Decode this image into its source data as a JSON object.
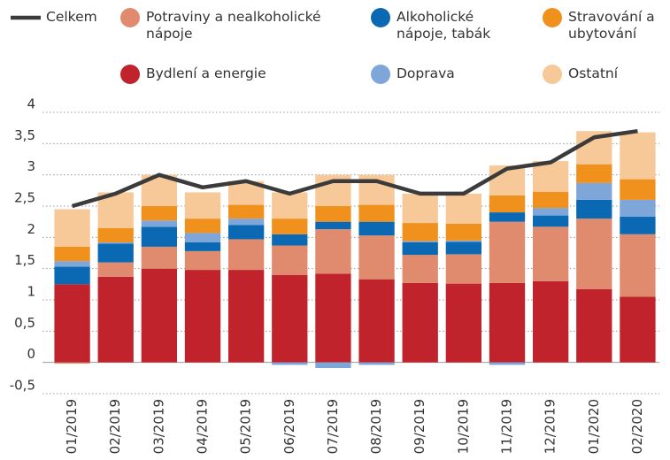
{
  "chart_data": {
    "type": "bar",
    "stacked": true,
    "categories": [
      "01/2019",
      "02/2019",
      "03/2019",
      "04/2019",
      "05/2019",
      "06/2019",
      "07/2019",
      "08/2019",
      "09/2019",
      "10/2019",
      "11/2019",
      "12/2019",
      "01/2020",
      "02/2020"
    ],
    "series": [
      {
        "name": "Celkem",
        "color": "#3b3b3b",
        "kind": "line",
        "values": [
          2.5,
          2.7,
          3.0,
          2.8,
          2.9,
          2.7,
          2.9,
          2.9,
          2.7,
          2.7,
          3.1,
          3.2,
          3.6,
          3.7
        ]
      },
      {
        "name": "Bydlení a energie",
        "color": "#c0232b",
        "values": [
          1.25,
          1.37,
          1.5,
          1.48,
          1.48,
          1.4,
          1.42,
          1.33,
          1.27,
          1.26,
          1.27,
          1.3,
          1.17,
          1.05
        ]
      },
      {
        "name": "Potraviny a nealkoholické nápoje",
        "color": "#e08a6e",
        "values": [
          -0.02,
          0.23,
          0.35,
          0.3,
          0.49,
          0.47,
          0.71,
          0.7,
          0.45,
          0.47,
          0.98,
          0.87,
          1.13,
          1.0
        ]
      },
      {
        "name": "Alkoholické nápoje, tabák",
        "color": "#0b69b4",
        "values": [
          0.28,
          0.3,
          0.32,
          0.14,
          0.23,
          0.18,
          0.12,
          0.22,
          0.2,
          0.2,
          0.15,
          0.18,
          0.3,
          0.28
        ]
      },
      {
        "name": "Doprava",
        "color": "#7fa6d8",
        "values": [
          0.09,
          0.02,
          0.1,
          0.15,
          0.1,
          -0.04,
          -0.09,
          -0.04,
          0.02,
          0.02,
          -0.04,
          0.12,
          0.27,
          0.27
        ]
      },
      {
        "name": "Stravování a ubytování",
        "color": "#f0901d",
        "values": [
          0.23,
          0.23,
          0.23,
          0.23,
          0.22,
          0.25,
          0.25,
          0.27,
          0.29,
          0.27,
          0.27,
          0.26,
          0.3,
          0.33
        ]
      },
      {
        "name": "Ostatní",
        "color": "#f7c898",
        "values": [
          0.6,
          0.57,
          0.5,
          0.42,
          0.38,
          0.42,
          0.5,
          0.48,
          0.47,
          0.48,
          0.48,
          0.49,
          0.53,
          0.75
        ]
      }
    ],
    "ylim": [
      -0.5,
      4
    ],
    "yticks": [
      {
        "value": -0.5,
        "label": "-0,5"
      },
      0,
      {
        "value": 0.5,
        "label": "0,5"
      },
      1,
      {
        "value": 1.5,
        "label": "1,5"
      },
      2,
      {
        "value": 2.5,
        "label": "2,5"
      },
      3,
      {
        "value": 3.5,
        "label": "3,5"
      },
      4
    ],
    "grid": true
  }
}
